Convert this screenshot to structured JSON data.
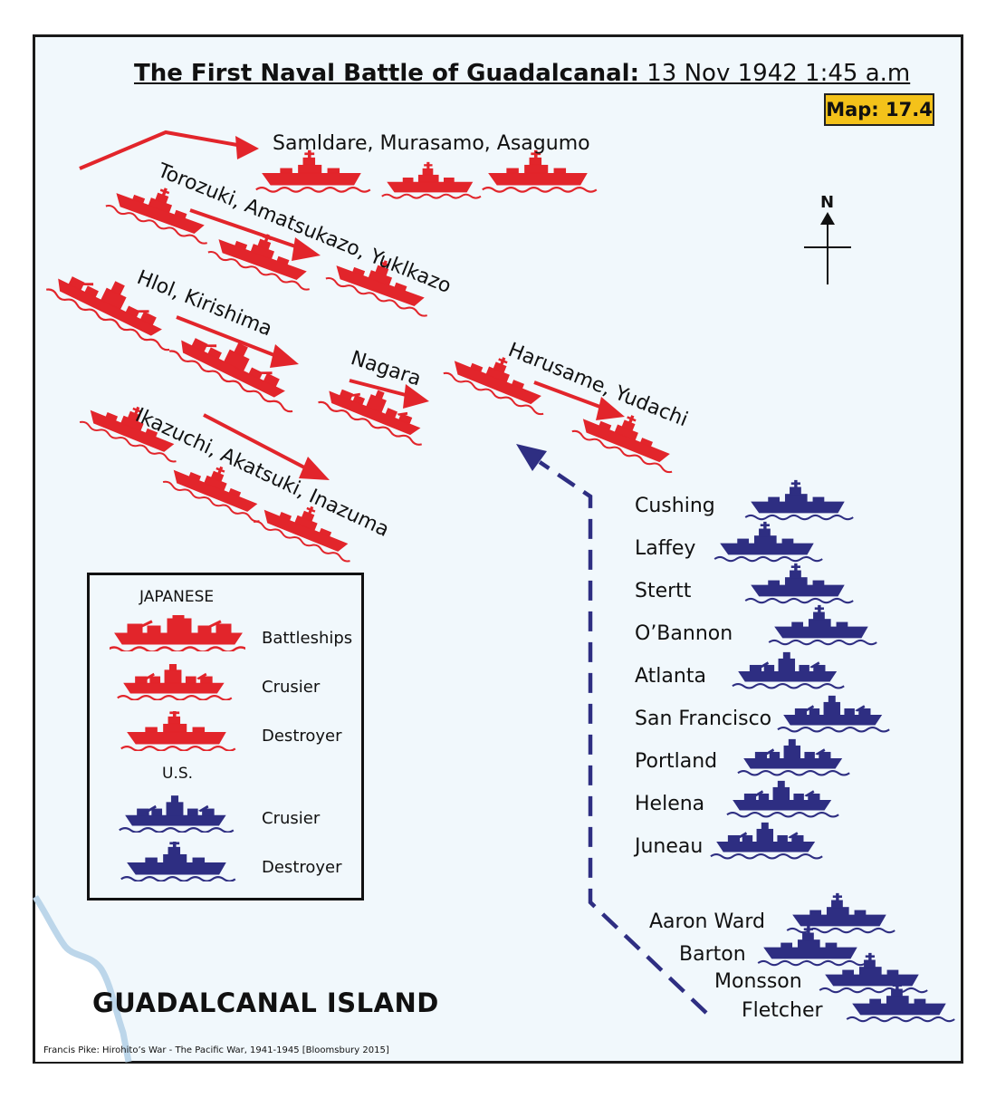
{
  "title": {
    "bold": "The First Naval Battle of Guadalcanal:",
    "rest": " 13 Nov 1942 1:45 a.m"
  },
  "badge": "Map: 17.4",
  "north_label": "N",
  "japanese_labels": {
    "g1": "Samldare, Murasamo, Asagumo",
    "g2": "Torozuki, Amatsukazo, Yuklkazo",
    "g3": "Hlol, Kirishima",
    "g4": "Nagara",
    "g5": "Harusame, Yudachi",
    "g6": "Ikazuchi, Akatsuki, Inazuma"
  },
  "us_ships": [
    "Cushing",
    "Laffey",
    "Stertt",
    "O’Bannon",
    "Atlanta",
    "San Francisco",
    "Portland",
    "Helena",
    "Juneau",
    "Aaron Ward",
    "Barton",
    "Monsson",
    "Fletcher"
  ],
  "legend": {
    "japanese_heading": "JAPANESE",
    "us_heading": "U.S.",
    "battleships": "Battleships",
    "cruiser_jp": "Crusier",
    "destroyer_jp": "Destroyer",
    "cruiser_us": "Crusier",
    "destroyer_us": "Destroyer"
  },
  "island": "GUADALCANAL ISLAND",
  "credit": "Francis Pike:  Hirohito’s War - The Pacific War, 1941-1945    [Bloomsbury 2015]",
  "colors": {
    "japanese": "#e2252b",
    "us": "#2e2e82",
    "badge": "#f4c21a",
    "sea": "#f1f8fc",
    "coast": "#bcd6ea"
  }
}
